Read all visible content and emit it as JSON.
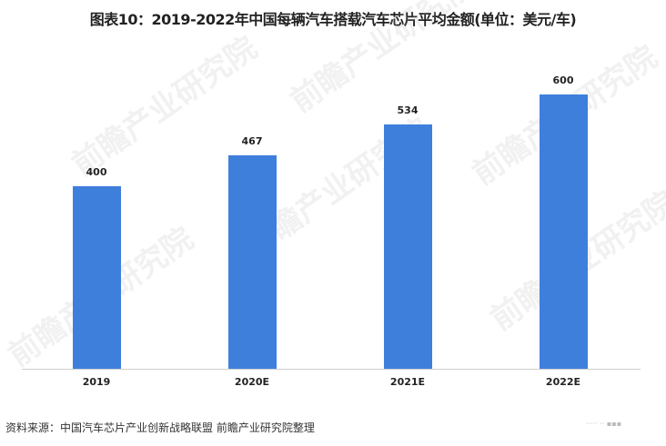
{
  "title": "图表10：2019-2022年中国每辆汽车搭载汽车芯片平均金额(单位：美元/车)",
  "source": "资料来源：中国汽车芯片产业创新战略联盟 前瞻产业研究院整理",
  "watermark": "前瞻产业研究院",
  "corner_mark": "·····  ·· ▪▪▪",
  "colors": {
    "bar": "#3f7fdc",
    "axis": "#d0d0d0",
    "text": "#222222"
  },
  "chart_data": {
    "type": "bar",
    "title": "图表10：2019-2022年中国每辆汽车搭载汽车芯片平均金额(单位：美元/车)",
    "categories": [
      "2019",
      "2020E",
      "2021E",
      "2022E"
    ],
    "values": [
      400,
      467,
      534,
      600
    ],
    "value_labels": [
      "400",
      "467",
      "534",
      "600"
    ],
    "xlabel": "",
    "ylabel": "美元/车",
    "ylim": [
      0,
      700
    ],
    "grid": false,
    "legend": null
  }
}
